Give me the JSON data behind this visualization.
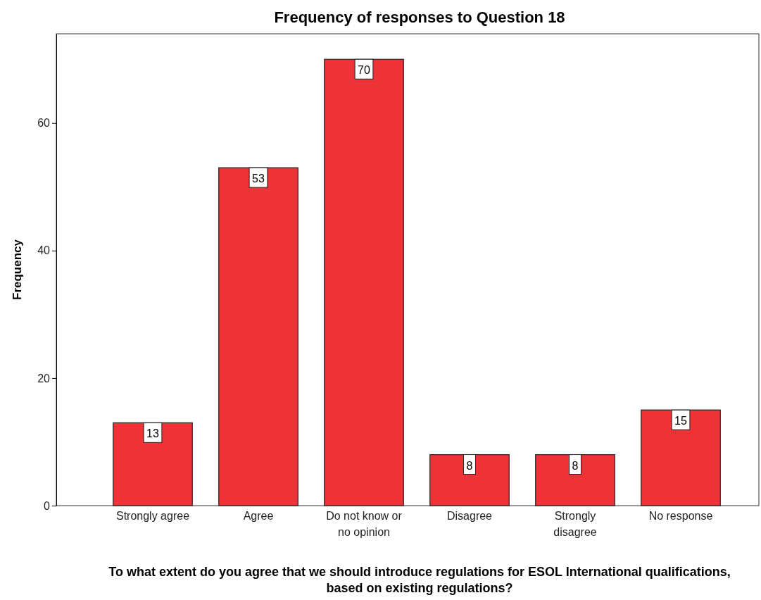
{
  "chart_data": {
    "type": "bar",
    "title": "Frequency of responses to Question 18",
    "xlabel": "To what extent do you agree that we should introduce regulations for ESOL International qualifications, based on existing regulations?",
    "ylabel": "Frequency",
    "categories": [
      "Strongly agree",
      "Agree",
      "Do not know or no opinion",
      "Disagree",
      "Strongly disagree",
      "No response"
    ],
    "values": [
      13,
      53,
      70,
      8,
      8,
      15
    ],
    "color": "#ee3338",
    "ylim": [
      0,
      74
    ],
    "yticks": [
      0,
      20,
      40,
      60
    ],
    "data_labels": true,
    "grid": false
  }
}
